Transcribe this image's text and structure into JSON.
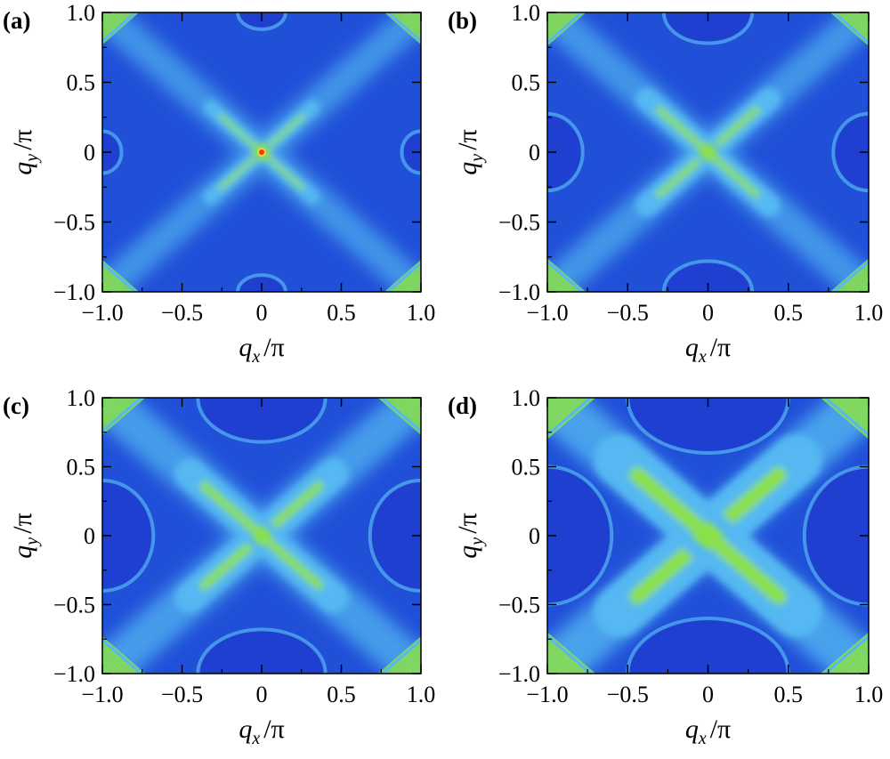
{
  "chart_data": [
    {
      "type": "heatmap",
      "panel_label": "(a)",
      "xlabel": "q_x /π",
      "ylabel": "q_y /π",
      "xlim": [
        -1.0,
        1.0
      ],
      "ylim": [
        -1.0,
        1.0
      ],
      "x_ticks": [
        "−1.0",
        "−0.5",
        "0",
        "0.5",
        "1.0"
      ],
      "y_ticks": [
        "1.0",
        "0.5",
        "0",
        "−0.5",
        "−1.0"
      ],
      "colors": {
        "background": "#2050d8",
        "mid": "#55b8f2",
        "high": "#8be04a",
        "peak": "#e33b1e"
      },
      "features": {
        "center_peak": "red",
        "x_arm_length": 0.32,
        "x_arm_width": 0.06,
        "side_pockets": "small",
        "corner_glow": 0.25
      }
    },
    {
      "type": "heatmap",
      "panel_label": "(b)",
      "xlabel": "q_x /π",
      "ylabel": "q_y /π",
      "xlim": [
        -1.0,
        1.0
      ],
      "ylim": [
        -1.0,
        1.0
      ],
      "x_ticks": [
        "−1.0",
        "−0.5",
        "0",
        "0.5",
        "1.0"
      ],
      "y_ticks": [
        "1.0",
        "0.5",
        "0",
        "−0.5",
        "−1.0"
      ],
      "colors": {
        "background": "#2050d8",
        "mid": "#55b8f2",
        "high": "#8be04a",
        "peak": "#8be04a"
      },
      "features": {
        "center_peak": "green",
        "x_arm_length": 0.38,
        "x_arm_width": 0.09,
        "side_pockets": "medium",
        "corner_glow": 0.3
      }
    },
    {
      "type": "heatmap",
      "panel_label": "(c)",
      "xlabel": "q_x /π",
      "ylabel": "q_y /π",
      "xlim": [
        -1.0,
        1.0
      ],
      "ylim": [
        -1.0,
        1.0
      ],
      "x_ticks": [
        "−1.0",
        "−0.5",
        "0",
        "0.5",
        "1.0"
      ],
      "y_ticks": [
        "1.0",
        "0.5",
        "0",
        "−0.5",
        "−1.0"
      ],
      "colors": {
        "background": "#2050d8",
        "mid": "#55b8f2",
        "high": "#8be04a",
        "peak": "#8be04a"
      },
      "features": {
        "center_peak": "green",
        "x_arm_length": 0.45,
        "x_arm_width": 0.12,
        "side_pockets": "large",
        "corner_glow": 0.45
      }
    },
    {
      "type": "heatmap",
      "panel_label": "(d)",
      "xlabel": "q_x /π",
      "ylabel": "q_y /π",
      "xlim": [
        -1.0,
        1.0
      ],
      "ylim": [
        -1.0,
        1.0
      ],
      "x_ticks": [
        "−1.0",
        "−0.5",
        "0",
        "0.5",
        "1.0"
      ],
      "y_ticks": [
        "1.0",
        "0.5",
        "0",
        "−0.5",
        "−1.0"
      ],
      "colors": {
        "background": "#2050d8",
        "mid": "#55b8f2",
        "high": "#8be04a",
        "peak": "#8be04a"
      },
      "features": {
        "center_peak": "green-diamond",
        "x_arm_length": 0.55,
        "x_arm_width": 0.2,
        "side_pockets": "very-large",
        "corner_glow": 0.6
      }
    }
  ]
}
